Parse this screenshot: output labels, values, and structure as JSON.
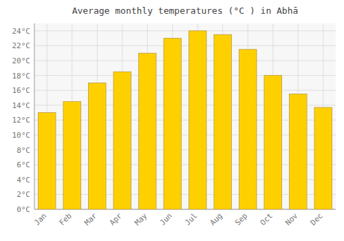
{
  "chart_data": {
    "type": "bar",
    "title": "Average monthly temperatures (°C ) in Abhā",
    "categories": [
      "Jan",
      "Feb",
      "Mar",
      "Apr",
      "May",
      "Jun",
      "Jul",
      "Aug",
      "Sep",
      "Oct",
      "Nov",
      "Dec"
    ],
    "values": [
      13.0,
      14.5,
      17.0,
      18.5,
      21.0,
      23.0,
      24.0,
      23.5,
      21.5,
      18.0,
      15.5,
      13.7
    ],
    "color": "#FFD000",
    "ylim": [
      0,
      25
    ],
    "yticks": [
      {
        "value": 0,
        "label": "0°C"
      },
      {
        "value": 2,
        "label": "2°C"
      },
      {
        "value": 4,
        "label": "4°C"
      },
      {
        "value": 6,
        "label": "6°C"
      },
      {
        "value": 8,
        "label": "8°C"
      },
      {
        "value": 10,
        "label": "10°C"
      },
      {
        "value": 12,
        "label": "12°C"
      },
      {
        "value": 14,
        "label": "14°C"
      },
      {
        "value": 16,
        "label": "16°C"
      },
      {
        "value": 18,
        "label": "18°C"
      },
      {
        "value": 20,
        "label": "20°C"
      },
      {
        "value": 22,
        "label": "22°C"
      },
      {
        "value": 24,
        "label": "24°C"
      }
    ],
    "grid": true
  }
}
